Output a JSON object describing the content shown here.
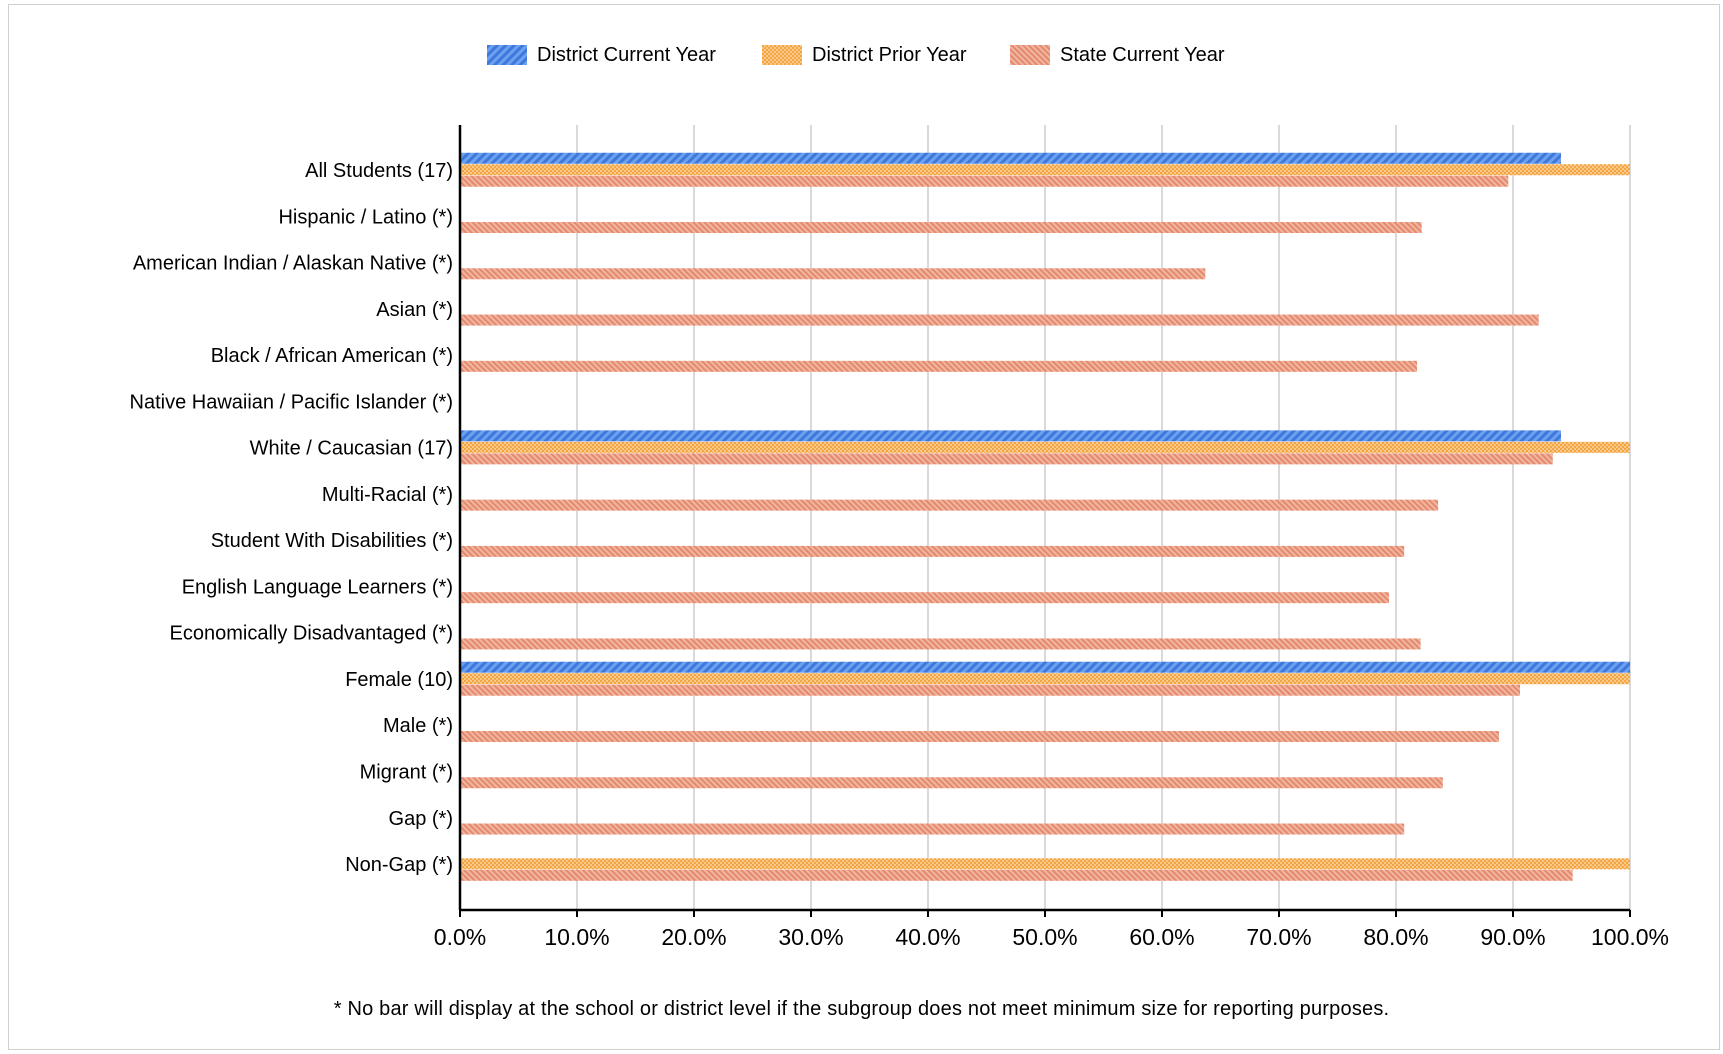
{
  "chart_data": {
    "type": "bar",
    "orientation": "horizontal",
    "categories": [
      "All Students (17)",
      "Hispanic / Latino (*)",
      "American Indian / Alaskan Native (*)",
      "Asian (*)",
      "Black / African American (*)",
      "Native Hawaiian / Pacific Islander (*)",
      "White / Caucasian (17)",
      "Multi-Racial (*)",
      "Student With Disabilities (*)",
      "English Language Learners (*)",
      "Economically Disadvantaged (*)",
      "Female (10)",
      "Male (*)",
      "Migrant (*)",
      "Gap (*)",
      "Non-Gap (*)"
    ],
    "series": [
      {
        "name": "District Current Year",
        "color": "#4a86e8",
        "pattern": "diagonal-stripes",
        "values": [
          94.1,
          null,
          null,
          null,
          null,
          null,
          94.1,
          null,
          null,
          null,
          null,
          100.0,
          null,
          null,
          null,
          null
        ]
      },
      {
        "name": "District Prior Year",
        "color": "#f6b26b",
        "pattern": "crosshatch",
        "values": [
          100.0,
          null,
          null,
          null,
          null,
          null,
          100.0,
          null,
          null,
          null,
          null,
          100.0,
          null,
          null,
          null,
          100.0
        ]
      },
      {
        "name": "State Current Year",
        "color": "#ea9a80",
        "pattern": "fine-diagonal",
        "values": [
          89.6,
          82.2,
          63.7,
          92.2,
          81.8,
          null,
          93.4,
          83.6,
          80.7,
          79.4,
          82.1,
          90.6,
          88.8,
          84.0,
          80.7,
          95.1
        ]
      }
    ],
    "x_ticks": [
      "0.0%",
      "10.0%",
      "20.0%",
      "30.0%",
      "40.0%",
      "50.0%",
      "60.0%",
      "70.0%",
      "80.0%",
      "90.0%",
      "100.0%"
    ],
    "xlim": [
      0,
      100
    ],
    "grid": true,
    "legend_position": "top",
    "footnote": "* No bar will display at the school or district level if the subgroup does not meet minimum size for reporting purposes."
  }
}
